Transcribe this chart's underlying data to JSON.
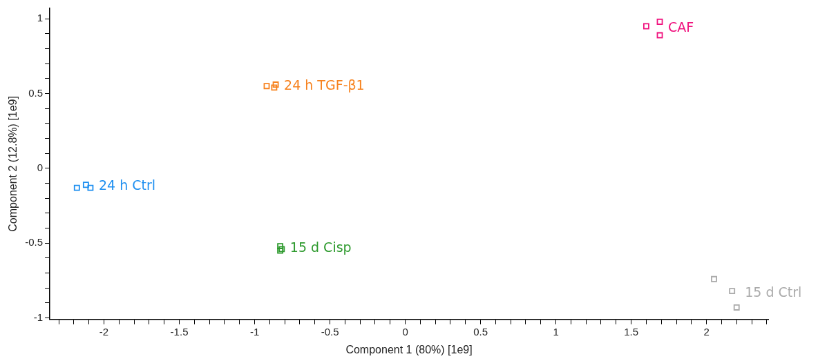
{
  "chart_data": {
    "type": "scatter",
    "xlabel": "Component 1 (80%) [1e9]",
    "ylabel": "Component 2 (12.8%) [1e9]",
    "marker": "square",
    "grid": false,
    "legend": false,
    "xlim": [
      -2.36,
      2.41
    ],
    "ylim": [
      -1.01,
      1.07
    ],
    "xticks": [
      {
        "value": -2.3,
        "label": null
      },
      {
        "value": -2.2,
        "label": null
      },
      {
        "value": -2.1,
        "label": null
      },
      -2,
      {
        "value": -1.9,
        "label": null
      },
      {
        "value": -1.8,
        "label": null
      },
      {
        "value": -1.7,
        "label": null
      },
      {
        "value": -1.6,
        "label": null
      },
      -1.5,
      {
        "value": -1.4,
        "label": null
      },
      {
        "value": -1.3,
        "label": null
      },
      {
        "value": -1.2,
        "label": null
      },
      {
        "value": -1.1,
        "label": null
      },
      -1,
      {
        "value": -0.9,
        "label": null
      },
      {
        "value": -0.8,
        "label": null
      },
      {
        "value": -0.7,
        "label": null
      },
      {
        "value": -0.6,
        "label": null
      },
      -0.5,
      {
        "value": -0.4,
        "label": null
      },
      {
        "value": -0.3,
        "label": null
      },
      {
        "value": -0.2,
        "label": null
      },
      {
        "value": -0.1,
        "label": null
      },
      0,
      {
        "value": 0.1,
        "label": null
      },
      {
        "value": 0.2,
        "label": null
      },
      {
        "value": 0.3,
        "label": null
      },
      {
        "value": 0.4,
        "label": null
      },
      0.5,
      {
        "value": 0.6,
        "label": null
      },
      {
        "value": 0.7,
        "label": null
      },
      {
        "value": 0.8,
        "label": null
      },
      {
        "value": 0.9,
        "label": null
      },
      1,
      {
        "value": 1.1,
        "label": null
      },
      {
        "value": 1.2,
        "label": null
      },
      {
        "value": 1.3,
        "label": null
      },
      {
        "value": 1.4,
        "label": null
      },
      1.5,
      {
        "value": 1.6,
        "label": null
      },
      {
        "value": 1.7,
        "label": null
      },
      {
        "value": 1.8,
        "label": null
      },
      {
        "value": 1.9,
        "label": null
      },
      2,
      {
        "value": 2.1,
        "label": null
      },
      {
        "value": 2.2,
        "label": null
      },
      {
        "value": 2.3,
        "label": null
      },
      {
        "value": 2.4,
        "label": null
      }
    ],
    "yticks": [
      -1,
      {
        "value": -0.9,
        "label": null
      },
      {
        "value": -0.8,
        "label": null
      },
      {
        "value": -0.7,
        "label": null
      },
      {
        "value": -0.6,
        "label": null
      },
      -0.5,
      {
        "value": -0.4,
        "label": null
      },
      {
        "value": -0.3,
        "label": null
      },
      {
        "value": -0.2,
        "label": null
      },
      {
        "value": -0.1,
        "label": null
      },
      0,
      {
        "value": 0.1,
        "label": null
      },
      {
        "value": 0.2,
        "label": null
      },
      {
        "value": 0.3,
        "label": null
      },
      {
        "value": 0.4,
        "label": null
      },
      0.5,
      {
        "value": 0.6,
        "label": null
      },
      {
        "value": 0.7,
        "label": null
      },
      {
        "value": 0.8,
        "label": null
      },
      {
        "value": 0.9,
        "label": null
      },
      1
    ],
    "series": [
      {
        "name": "CAF",
        "color": "#f0127e",
        "x": [
          1.6,
          1.69,
          1.69
        ],
        "values": [
          0.95,
          0.98,
          0.89
        ]
      },
      {
        "name": "24 h TGF-β1",
        "color": "#f7821e",
        "x": [
          -0.92,
          -0.87,
          -0.86
        ],
        "values": [
          0.55,
          0.54,
          0.56
        ]
      },
      {
        "name": "24 h Ctrl",
        "color": "#1e8ff0",
        "x": [
          -2.18,
          -2.12,
          -2.09
        ],
        "values": [
          -0.13,
          -0.11,
          -0.13
        ]
      },
      {
        "name": "15 d Cisp",
        "color": "#2e9a2e",
        "x": [
          -0.83,
          -0.83,
          -0.82
        ],
        "values": [
          -0.52,
          -0.55,
          -0.54
        ]
      },
      {
        "name": "15 d Ctrl",
        "color": "#aaaaaa",
        "x": [
          2.05,
          2.17,
          2.2
        ],
        "values": [
          -0.74,
          -0.82,
          -0.93
        ]
      }
    ]
  }
}
